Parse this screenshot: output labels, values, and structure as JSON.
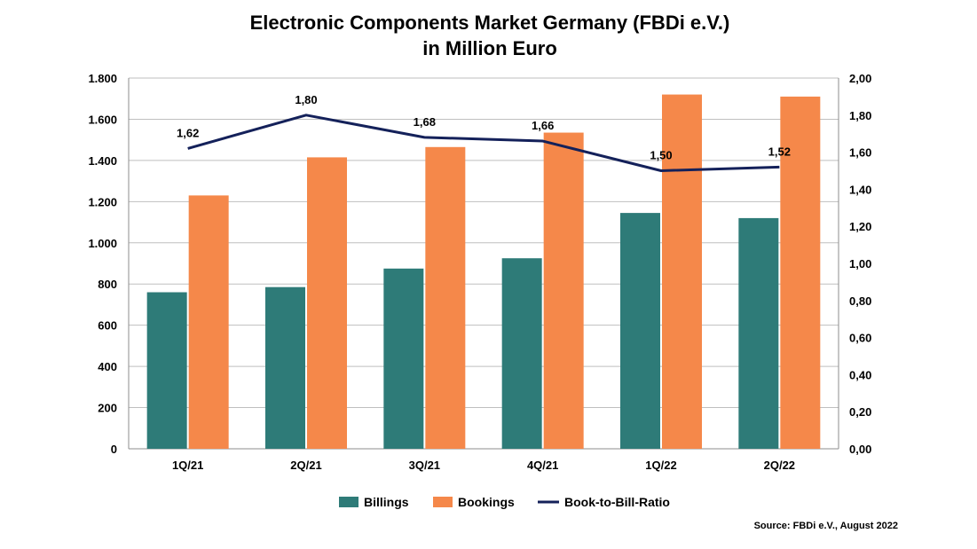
{
  "chart_data": {
    "type": "bar",
    "title": "Electronic Components Market Germany (FBDi e.V.)",
    "subtitle": "in Million Euro",
    "categories": [
      "1Q/21",
      "2Q/21",
      "3Q/21",
      "4Q/21",
      "1Q/22",
      "2Q/22"
    ],
    "series": [
      {
        "name": "Billings",
        "type": "bar",
        "axis": "left",
        "values": [
          760,
          785,
          875,
          925,
          1145,
          1120
        ]
      },
      {
        "name": "Bookings",
        "type": "bar",
        "axis": "left",
        "values": [
          1230,
          1415,
          1465,
          1535,
          1720,
          1710
        ]
      },
      {
        "name": "Book-to-Bill-Ratio",
        "type": "line",
        "axis": "right",
        "values": [
          1.62,
          1.8,
          1.68,
          1.66,
          1.5,
          1.52
        ],
        "labels": [
          "1,62",
          "1,80",
          "1,68",
          "1,66",
          "1,50",
          "1,52"
        ]
      }
    ],
    "y_left": {
      "lim": [
        0,
        1800
      ],
      "ticks": [
        0,
        200,
        400,
        600,
        800,
        1000,
        1200,
        1400,
        1600,
        1800
      ],
      "tick_labels": [
        "0",
        "200",
        "400",
        "600",
        "800",
        "1.000",
        "1.200",
        "1.400",
        "1.600",
        "1.800"
      ]
    },
    "y_right": {
      "lim": [
        0,
        2
      ],
      "ticks": [
        0,
        0.2,
        0.4,
        0.6,
        0.8,
        1.0,
        1.2,
        1.4,
        1.6,
        1.8,
        2.0
      ],
      "tick_labels": [
        "0,00",
        "0,20",
        "0,40",
        "0,60",
        "0,80",
        "1,00",
        "1,20",
        "1,40",
        "1,60",
        "1,80",
        "2,00"
      ]
    },
    "grid": true,
    "legend": "bottom",
    "source": "Source: FBDi e.V., August 2022"
  },
  "colors": {
    "billings": "#2e7b78",
    "bookings": "#f5884a",
    "ratio": "#14215a",
    "grid": "#bfbfbf",
    "axis": "#8c8c8c"
  }
}
